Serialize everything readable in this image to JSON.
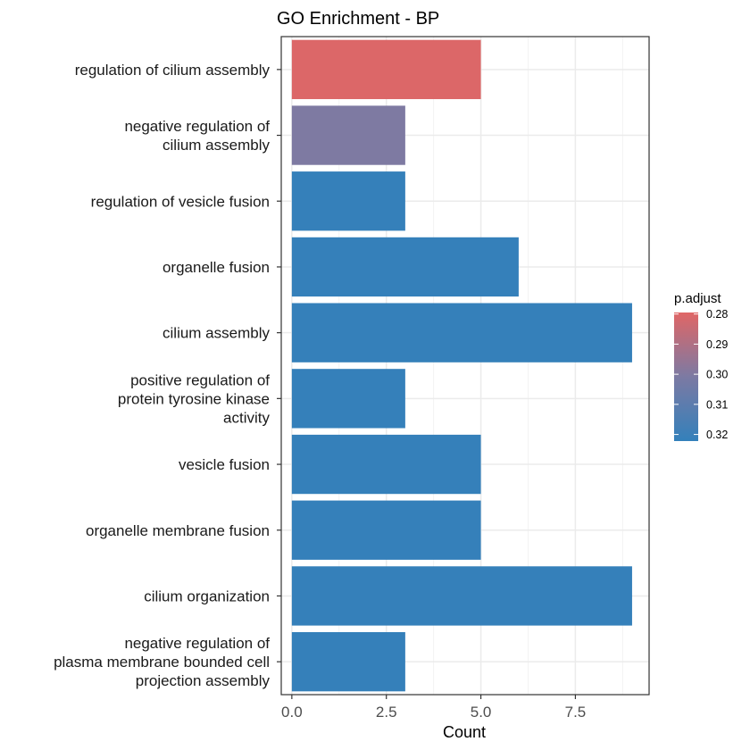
{
  "chart_data": {
    "type": "bar",
    "orientation": "horizontal",
    "title": "GO Enrichment - BP",
    "xlabel": "Count",
    "ylabel": "",
    "xlim": [
      -0.28,
      9.45
    ],
    "xticks": [
      0,
      2.5,
      5,
      7.5
    ],
    "xtick_labels": [
      "0.0",
      "2.5",
      "5.0",
      "7.5"
    ],
    "grid": true,
    "categories": [
      [
        "regulation of cilium assembly"
      ],
      [
        "negative regulation of",
        "cilium assembly"
      ],
      [
        "regulation of vesicle fusion"
      ],
      [
        "organelle fusion"
      ],
      [
        "cilium assembly"
      ],
      [
        "positive regulation of",
        "protein tyrosine kinase",
        "activity"
      ],
      [
        "vesicle fusion"
      ],
      [
        "organelle membrane fusion"
      ],
      [
        "cilium organization"
      ],
      [
        "negative regulation of",
        "plasma membrane bounded cell",
        "projection assembly"
      ]
    ],
    "values": [
      5,
      3,
      3,
      6,
      9,
      3,
      5,
      5,
      9,
      3
    ],
    "p_adjust": [
      0.2803,
      0.3005,
      0.3217,
      0.3217,
      0.3217,
      0.3217,
      0.3217,
      0.3217,
      0.3217,
      0.3217
    ],
    "legend": {
      "title": "p.adjust",
      "position": "right",
      "ticks": [
        "0.28",
        "0.29",
        "0.30",
        "0.31",
        "0.32"
      ],
      "tick_values": [
        0.28,
        0.29,
        0.3,
        0.31,
        0.32
      ],
      "range": [
        0.2795,
        0.3222
      ],
      "low_color": "#e06666",
      "high_color": "#3380bb"
    }
  }
}
